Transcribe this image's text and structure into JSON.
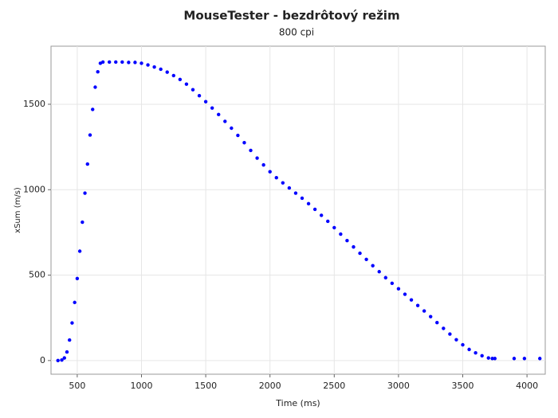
{
  "chart_data": {
    "type": "scatter",
    "title": "MouseTester - bezdrôtový režim",
    "subtitle": "800 cpi",
    "xlabel": "Time (ms)",
    "ylabel": "xSum (m/s)",
    "color": "#0000ff",
    "grid": true,
    "x": [
      350,
      380,
      400,
      420,
      440,
      460,
      480,
      500,
      520,
      540,
      560,
      580,
      600,
      620,
      640,
      660,
      680,
      700,
      750,
      800,
      850,
      900,
      950,
      1000,
      1050,
      1100,
      1150,
      1200,
      1250,
      1300,
      1350,
      1400,
      1450,
      1500,
      1550,
      1600,
      1650,
      1700,
      1750,
      1800,
      1850,
      1900,
      1950,
      2000,
      2050,
      2100,
      2150,
      2200,
      2250,
      2300,
      2350,
      2400,
      2450,
      2500,
      2550,
      2600,
      2650,
      2700,
      2750,
      2800,
      2850,
      2900,
      2950,
      3000,
      3050,
      3100,
      3150,
      3200,
      3250,
      3300,
      3350,
      3400,
      3450,
      3500,
      3550,
      3600,
      3650,
      3700,
      3730,
      3750,
      3900,
      3980,
      4100
    ],
    "values": [
      0,
      3,
      15,
      50,
      120,
      220,
      340,
      480,
      640,
      810,
      980,
      1150,
      1320,
      1470,
      1600,
      1690,
      1740,
      1747,
      1747,
      1747,
      1747,
      1745,
      1745,
      1740,
      1730,
      1718,
      1705,
      1688,
      1668,
      1645,
      1618,
      1585,
      1550,
      1515,
      1478,
      1440,
      1400,
      1360,
      1318,
      1275,
      1230,
      1185,
      1145,
      1105,
      1070,
      1040,
      1010,
      980,
      950,
      918,
      885,
      850,
      815,
      778,
      740,
      702,
      665,
      628,
      592,
      555,
      520,
      485,
      452,
      420,
      388,
      355,
      322,
      290,
      257,
      222,
      188,
      155,
      122,
      92,
      65,
      45,
      28,
      15,
      12,
      12,
      12,
      12,
      12
    ],
    "xlim": [
      296,
      4142
    ],
    "ylim": [
      -80,
      1840
    ],
    "xticks": [
      500,
      1000,
      1500,
      2000,
      2500,
      3000,
      3500,
      4000
    ],
    "yticks": [
      0,
      500,
      1000,
      1500
    ]
  }
}
